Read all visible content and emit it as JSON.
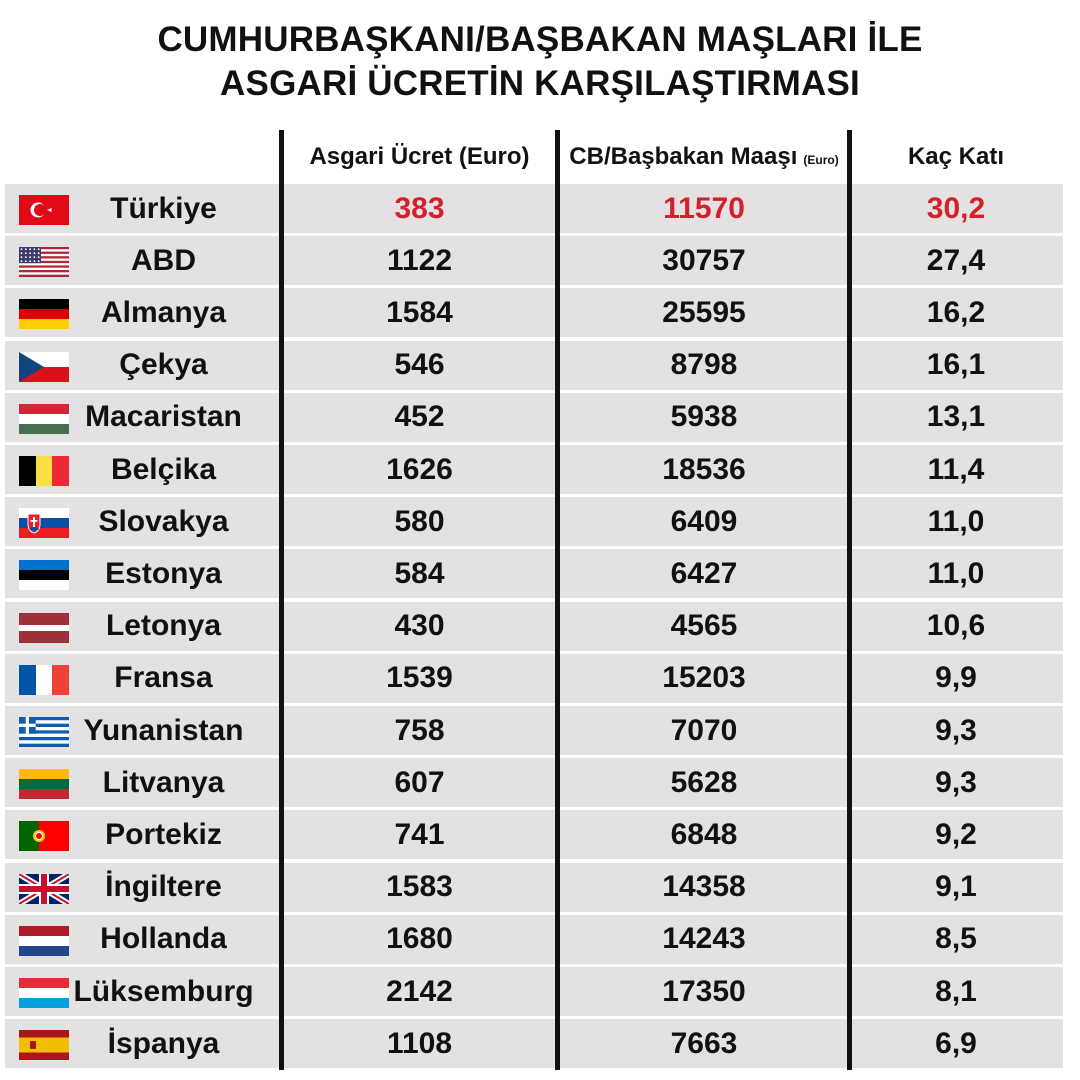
{
  "title_lines": [
    "CUMHURBAŞKANI/BAŞBAKAN MAŞLARI İLE",
    "ASGARİ ÜCRETİN KARŞILAŞTIRMASI"
  ],
  "columns": {
    "min_wage": "Asgari Ücret (Euro)",
    "leader_salary": "CB/Başbakan Maaşı",
    "leader_salary_unit": "(Euro)",
    "ratio": "Kaç Katı"
  },
  "colors": {
    "highlight": "#d4202a",
    "row_bg": "#e4e1e2",
    "text": "#111111"
  },
  "chart_data": {
    "type": "table",
    "title": "CUMHURBAŞKANI/BAŞBAKAN MAŞLARI İLE ASGARİ ÜCRETİN KARŞILAŞTIRMASI",
    "columns": [
      "Asgari Ücret (Euro)",
      "CB/Başbakan Maaşı (Euro)",
      "Kaç Katı"
    ],
    "rows": [
      {
        "country": "Türkiye",
        "flag": "flag-turkey-icon",
        "min_wage": "383",
        "salary": "11570",
        "ratio": "30,2",
        "highlight": true
      },
      {
        "country": "ABD",
        "flag": "flag-usa-icon",
        "min_wage": "1122",
        "salary": "30757",
        "ratio": "27,4"
      },
      {
        "country": "Almanya",
        "flag": "flag-germany-icon",
        "min_wage": "1584",
        "salary": "25595",
        "ratio": "16,2"
      },
      {
        "country": "Çekya",
        "flag": "flag-czechia-icon",
        "min_wage": "546",
        "salary": "8798",
        "ratio": "16,1"
      },
      {
        "country": "Macaristan",
        "flag": "flag-hungary-icon",
        "min_wage": "452",
        "salary": "5938",
        "ratio": "13,1"
      },
      {
        "country": "Belçika",
        "flag": "flag-belgium-icon",
        "min_wage": "1626",
        "salary": "18536",
        "ratio": "11,4"
      },
      {
        "country": "Slovakya",
        "flag": "flag-slovakia-icon",
        "min_wage": "580",
        "salary": "6409",
        "ratio": "11,0"
      },
      {
        "country": "Estonya",
        "flag": "flag-estonia-icon",
        "min_wage": "584",
        "salary": "6427",
        "ratio": "11,0"
      },
      {
        "country": "Letonya",
        "flag": "flag-latvia-icon",
        "min_wage": "430",
        "salary": "4565",
        "ratio": "10,6"
      },
      {
        "country": "Fransa",
        "flag": "flag-france-icon",
        "min_wage": "1539",
        "salary": "15203",
        "ratio": "9,9"
      },
      {
        "country": "Yunanistan",
        "flag": "flag-greece-icon",
        "min_wage": "758",
        "salary": "7070",
        "ratio": "9,3"
      },
      {
        "country": "Litvanya",
        "flag": "flag-lithuania-icon",
        "min_wage": "607",
        "salary": "5628",
        "ratio": "9,3"
      },
      {
        "country": "Portekiz",
        "flag": "flag-portugal-icon",
        "min_wage": "741",
        "salary": "6848",
        "ratio": "9,2"
      },
      {
        "country": "İngiltere",
        "flag": "flag-uk-icon",
        "min_wage": "1583",
        "salary": "14358",
        "ratio": "9,1"
      },
      {
        "country": "Hollanda",
        "flag": "flag-netherlands-icon",
        "min_wage": "1680",
        "salary": "14243",
        "ratio": "8,5"
      },
      {
        "country": "Lüksemburg",
        "flag": "flag-luxembourg-icon",
        "min_wage": "2142",
        "salary": "17350",
        "ratio": "8,1"
      },
      {
        "country": "İspanya",
        "flag": "flag-spain-icon",
        "min_wage": "1108",
        "salary": "7663",
        "ratio": "6,9"
      }
    ]
  }
}
